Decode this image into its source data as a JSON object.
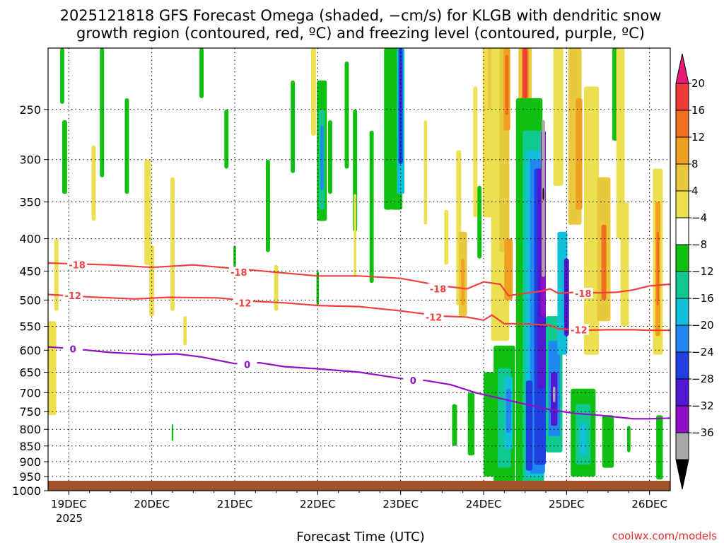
{
  "chart_data": {
    "type": "heatmap",
    "title_line1": "2025121818 GFS Forecast Omega (shaded, −cm/s) for KLGB with dendritic snow",
    "title_line2": "growth region (contoured, red, ºC) and freezing level (contoured, purple, ºC)",
    "xlabel": "Forecast Time (UTC)",
    "x_start_label": "2025",
    "credit": "coolwx.com/models",
    "y_ticks": [
      250,
      300,
      350,
      400,
      450,
      500,
      550,
      600,
      650,
      700,
      750,
      800,
      850,
      900,
      950,
      1000
    ],
    "ylim_hPa": [
      200,
      1000
    ],
    "x_ticks": [
      {
        "label": "19DEC",
        "day": 1
      },
      {
        "label": "20DEC",
        "day": 2
      },
      {
        "label": "21DEC",
        "day": 3
      },
      {
        "label": "22DEC",
        "day": 4
      },
      {
        "label": "23DEC",
        "day": 5
      },
      {
        "label": "24DEC",
        "day": 6
      },
      {
        "label": "25DEC",
        "day": 7
      },
      {
        "label": "26DEC",
        "day": 8
      }
    ],
    "xlim_days_from_1218": [
      0.75,
      8.25
    ],
    "colorbar": {
      "labels": [
        "20",
        "16",
        "12",
        "8",
        "4",
        "−4",
        "−8",
        "−12",
        "−16",
        "−20",
        "−24",
        "−28",
        "−32",
        "−36"
      ],
      "colors": [
        "#e8187a",
        "#f03a3a",
        "#f07020",
        "#f0a020",
        "#e8c83c",
        "#ece050",
        "#ffffff",
        "#10c010",
        "#10c890",
        "#10c0d8",
        "#2088f0",
        "#2040e0",
        "#5018d0",
        "#9010c8",
        "#a8a8a8",
        "#000000"
      ]
    },
    "omega_cells": [
      {
        "t": 1.95,
        "p": 370,
        "w": 0.08,
        "h": 140,
        "c": 5
      },
      {
        "t": 2.0,
        "p": 470,
        "w": 0.06,
        "h": 120,
        "c": 5
      },
      {
        "t": 0.85,
        "p": 460,
        "w": 0.05,
        "h": 120,
        "c": 5
      },
      {
        "t": 0.8,
        "p": 650,
        "w": 0.1,
        "h": 220,
        "c": 5
      },
      {
        "t": 1.3,
        "p": 330,
        "w": 0.05,
        "h": 90,
        "c": 5
      },
      {
        "t": 2.25,
        "p": 420,
        "w": 0.05,
        "h": 200,
        "c": 5
      },
      {
        "t": 0.92,
        "p": 190,
        "w": 0.05,
        "h": 110,
        "c": 7
      },
      {
        "t": 0.95,
        "p": 300,
        "w": 0.06,
        "h": 80,
        "c": 7
      },
      {
        "t": 1.4,
        "p": 260,
        "w": 0.05,
        "h": 120,
        "c": 7
      },
      {
        "t": 1.7,
        "p": 290,
        "w": 0.05,
        "h": 100,
        "c": 7
      },
      {
        "t": 2.6,
        "p": 210,
        "w": 0.05,
        "h": 60,
        "c": 7
      },
      {
        "t": 2.9,
        "p": 280,
        "w": 0.05,
        "h": 60,
        "c": 7
      },
      {
        "t": 3.4,
        "p": 360,
        "w": 0.05,
        "h": 120,
        "c": 7
      },
      {
        "t": 3.7,
        "p": 270,
        "w": 0.05,
        "h": 90,
        "c": 7
      },
      {
        "t": 3.5,
        "p": 480,
        "w": 0.05,
        "h": 80,
        "c": 5
      },
      {
        "t": 2.25,
        "p": 810,
        "w": 0.02,
        "h": 50,
        "c": 7
      },
      {
        "t": 3.95,
        "p": 230,
        "w": 0.06,
        "h": 90,
        "c": 5
      },
      {
        "t": 4.05,
        "p": 300,
        "w": 0.12,
        "h": 150,
        "c": 7
      },
      {
        "t": 4.05,
        "p": 305,
        "w": 0.07,
        "h": 110,
        "c": 8
      },
      {
        "t": 4.05,
        "p": 300,
        "w": 0.04,
        "h": 70,
        "c": 10
      },
      {
        "t": 4.15,
        "p": 300,
        "w": 0.05,
        "h": 80,
        "c": 7
      },
      {
        "t": 4.35,
        "p": 260,
        "w": 0.05,
        "h": 100,
        "c": 7
      },
      {
        "t": 4.45,
        "p": 320,
        "w": 0.05,
        "h": 140,
        "c": 7
      },
      {
        "t": 4.65,
        "p": 370,
        "w": 0.05,
        "h": 200,
        "c": 7
      },
      {
        "t": 4.85,
        "p": 280,
        "w": 0.1,
        "h": 160,
        "c": 7
      },
      {
        "t": 4.95,
        "p": 260,
        "w": 0.14,
        "h": 200,
        "c": 7
      },
      {
        "t": 5.0,
        "p": 260,
        "w": 0.09,
        "h": 160,
        "c": 9
      },
      {
        "t": 5.0,
        "p": 250,
        "w": 0.05,
        "h": 110,
        "c": 11
      },
      {
        "t": 5.0,
        "p": 230,
        "w": 0.02,
        "h": 40,
        "c": 12
      },
      {
        "t": 5.3,
        "p": 320,
        "w": 0.04,
        "h": 120,
        "c": 5
      },
      {
        "t": 5.7,
        "p": 400,
        "w": 0.06,
        "h": 220,
        "c": 5
      },
      {
        "t": 5.55,
        "p": 400,
        "w": 0.05,
        "h": 80,
        "c": 5
      },
      {
        "t": 5.9,
        "p": 300,
        "w": 0.05,
        "h": 140,
        "c": 5
      },
      {
        "t": 5.95,
        "p": 380,
        "w": 0.05,
        "h": 100,
        "c": 7
      },
      {
        "t": 6.05,
        "p": 290,
        "w": 0.05,
        "h": 160,
        "c": 7
      },
      {
        "t": 5.75,
        "p": 460,
        "w": 0.1,
        "h": 140,
        "c": 4
      },
      {
        "t": 5.75,
        "p": 470,
        "w": 0.04,
        "h": 80,
        "c": 3
      },
      {
        "t": 5.65,
        "p": 790,
        "w": 0.06,
        "h": 120,
        "c": 7
      },
      {
        "t": 5.85,
        "p": 790,
        "w": 0.08,
        "h": 180,
        "c": 7
      },
      {
        "t": 6.05,
        "p": 260,
        "w": 0.12,
        "h": 220,
        "c": 5
      },
      {
        "t": 6.1,
        "p": 200,
        "w": 0.1,
        "h": 100,
        "c": 4
      },
      {
        "t": 6.2,
        "p": 380,
        "w": 0.22,
        "h": 400,
        "c": 5
      },
      {
        "t": 6.25,
        "p": 300,
        "w": 0.12,
        "h": 240,
        "c": 4
      },
      {
        "t": 6.28,
        "p": 220,
        "w": 0.08,
        "h": 100,
        "c": 3
      },
      {
        "t": 6.28,
        "p": 230,
        "w": 0.04,
        "h": 50,
        "c": 2
      },
      {
        "t": 6.3,
        "p": 450,
        "w": 0.1,
        "h": 100,
        "c": 3
      },
      {
        "t": 6.1,
        "p": 800,
        "w": 0.2,
        "h": 300,
        "c": 7
      },
      {
        "t": 6.25,
        "p": 790,
        "w": 0.26,
        "h": 400,
        "c": 7
      },
      {
        "t": 6.25,
        "p": 780,
        "w": 0.16,
        "h": 280,
        "c": 8
      },
      {
        "t": 6.3,
        "p": 760,
        "w": 0.1,
        "h": 200,
        "c": 9
      },
      {
        "t": 6.3,
        "p": 750,
        "w": 0.06,
        "h": 120,
        "c": 10
      },
      {
        "t": 6.5,
        "p": 240,
        "w": 0.16,
        "h": 140,
        "c": 4
      },
      {
        "t": 6.5,
        "p": 230,
        "w": 0.08,
        "h": 80,
        "c": 2
      },
      {
        "t": 6.5,
        "p": 220,
        "w": 0.04,
        "h": 40,
        "c": 1
      },
      {
        "t": 6.55,
        "p": 620,
        "w": 0.32,
        "h": 760,
        "c": 7
      },
      {
        "t": 6.6,
        "p": 620,
        "w": 0.26,
        "h": 700,
        "c": 8
      },
      {
        "t": 6.62,
        "p": 620,
        "w": 0.22,
        "h": 660,
        "c": 9
      },
      {
        "t": 6.65,
        "p": 620,
        "w": 0.18,
        "h": 640,
        "c": 10
      },
      {
        "t": 6.68,
        "p": 610,
        "w": 0.14,
        "h": 600,
        "c": 11
      },
      {
        "t": 6.7,
        "p": 500,
        "w": 0.1,
        "h": 380,
        "c": 12
      },
      {
        "t": 6.55,
        "p": 800,
        "w": 0.08,
        "h": 260,
        "c": 11
      },
      {
        "t": 6.72,
        "p": 400,
        "w": 0.06,
        "h": 260,
        "c": 13
      },
      {
        "t": 6.72,
        "p": 360,
        "w": 0.04,
        "h": 200,
        "c": 14
      },
      {
        "t": 6.72,
        "p": 340,
        "w": 0.016,
        "h": 15,
        "c": 15
      },
      {
        "t": 6.85,
        "p": 700,
        "w": 0.2,
        "h": 340,
        "c": 8
      },
      {
        "t": 6.85,
        "p": 700,
        "w": 0.14,
        "h": 240,
        "c": 10
      },
      {
        "t": 6.85,
        "p": 720,
        "w": 0.08,
        "h": 140,
        "c": 12
      },
      {
        "t": 6.85,
        "p": 705,
        "w": 0.03,
        "h": 40,
        "c": 14
      },
      {
        "t": 6.95,
        "p": 500,
        "w": 0.12,
        "h": 220,
        "c": 9
      },
      {
        "t": 7.0,
        "p": 500,
        "w": 0.06,
        "h": 140,
        "c": 12
      },
      {
        "t": 6.9,
        "p": 250,
        "w": 0.12,
        "h": 160,
        "c": 5
      },
      {
        "t": 7.1,
        "p": 280,
        "w": 0.16,
        "h": 200,
        "c": 4
      },
      {
        "t": 7.15,
        "p": 300,
        "w": 0.08,
        "h": 120,
        "c": 3
      },
      {
        "t": 7.2,
        "p": 820,
        "w": 0.3,
        "h": 260,
        "c": 7
      },
      {
        "t": 7.2,
        "p": 820,
        "w": 0.18,
        "h": 180,
        "c": 8
      },
      {
        "t": 7.2,
        "p": 830,
        "w": 0.08,
        "h": 100,
        "c": 9
      },
      {
        "t": 7.3,
        "p": 420,
        "w": 0.18,
        "h": 380,
        "c": 5
      },
      {
        "t": 7.45,
        "p": 430,
        "w": 0.16,
        "h": 220,
        "c": 4
      },
      {
        "t": 7.45,
        "p": 440,
        "w": 0.06,
        "h": 120,
        "c": 2
      },
      {
        "t": 7.6,
        "p": 230,
        "w": 0.1,
        "h": 100,
        "c": 7
      },
      {
        "t": 7.65,
        "p": 300,
        "w": 0.1,
        "h": 200,
        "c": 5
      },
      {
        "t": 7.7,
        "p": 450,
        "w": 0.1,
        "h": 200,
        "c": 5
      },
      {
        "t": 7.5,
        "p": 840,
        "w": 0.14,
        "h": 160,
        "c": 7
      },
      {
        "t": 7.75,
        "p": 830,
        "w": 0.04,
        "h": 80,
        "c": 7
      },
      {
        "t": 8.1,
        "p": 460,
        "w": 0.12,
        "h": 300,
        "c": 5
      },
      {
        "t": 8.1,
        "p": 460,
        "w": 0.06,
        "h": 220,
        "c": 3
      },
      {
        "t": 8.1,
        "p": 450,
        "w": 0.03,
        "h": 120,
        "c": 2
      },
      {
        "t": 8.12,
        "p": 860,
        "w": 0.08,
        "h": 200,
        "c": 7
      },
      {
        "t": 3.0,
        "p": 430,
        "w": 0.03,
        "h": 40,
        "c": 7
      },
      {
        "t": 2.4,
        "p": 560,
        "w": 0.04,
        "h": 60,
        "c": 5
      },
      {
        "t": 4.45,
        "p": 400,
        "w": 0.03,
        "h": 120,
        "c": 5
      },
      {
        "t": 4.0,
        "p": 480,
        "w": 0.03,
        "h": 60,
        "c": 7
      }
    ],
    "dgz_lines": [
      {
        "label": "-18",
        "points": [
          [
            0.75,
            437
          ],
          [
            1.5,
            440
          ],
          [
            2.0,
            444
          ],
          [
            2.5,
            440
          ],
          [
            3.0,
            446
          ],
          [
            3.5,
            452
          ],
          [
            4.0,
            458
          ],
          [
            4.5,
            458
          ],
          [
            5.0,
            462
          ],
          [
            5.5,
            475
          ],
          [
            5.8,
            480
          ],
          [
            6.0,
            468
          ],
          [
            6.2,
            472
          ],
          [
            6.3,
            492
          ],
          [
            6.5,
            488
          ],
          [
            6.7,
            484
          ],
          [
            6.8,
            480
          ],
          [
            6.9,
            488
          ],
          [
            7.1,
            486
          ],
          [
            7.4,
            487
          ],
          [
            7.6,
            486
          ],
          [
            7.8,
            482
          ],
          [
            8.0,
            475
          ],
          [
            8.25,
            472
          ]
        ],
        "labels": [
          [
            1.1,
            440
          ],
          [
            3.05,
            452
          ],
          [
            5.45,
            480
          ],
          [
            7.2,
            488
          ]
        ]
      },
      {
        "label": "-12",
        "points": [
          [
            0.75,
            490
          ],
          [
            1.2,
            494
          ],
          [
            1.8,
            498
          ],
          [
            2.2,
            495
          ],
          [
            2.8,
            496
          ],
          [
            3.2,
            502
          ],
          [
            3.6,
            505
          ],
          [
            4.0,
            510
          ],
          [
            4.5,
            512
          ],
          [
            5.0,
            520
          ],
          [
            5.5,
            530
          ],
          [
            5.8,
            532
          ],
          [
            6.0,
            538
          ],
          [
            6.1,
            528
          ],
          [
            6.25,
            545
          ],
          [
            6.5,
            545
          ],
          [
            6.8,
            548
          ],
          [
            6.9,
            555
          ],
          [
            7.2,
            558
          ],
          [
            7.5,
            557
          ],
          [
            7.8,
            557
          ],
          [
            8.0,
            558
          ],
          [
            8.25,
            558
          ]
        ],
        "labels": [
          [
            1.05,
            492
          ],
          [
            3.1,
            505
          ],
          [
            5.4,
            532
          ],
          [
            7.15,
            557
          ]
        ]
      }
    ],
    "freezing_line": {
      "label": "0",
      "points": [
        [
          0.75,
          593
        ],
        [
          1.0,
          596
        ],
        [
          1.5,
          605
        ],
        [
          2.0,
          610
        ],
        [
          2.3,
          608
        ],
        [
          2.6,
          615
        ],
        [
          3.0,
          630
        ],
        [
          3.3,
          628
        ],
        [
          3.6,
          637
        ],
        [
          4.0,
          642
        ],
        [
          4.5,
          650
        ],
        [
          5.0,
          665
        ],
        [
          5.3,
          670
        ],
        [
          5.6,
          680
        ],
        [
          5.9,
          700
        ],
        [
          6.2,
          715
        ],
        [
          6.5,
          730
        ],
        [
          6.8,
          745
        ],
        [
          7.1,
          755
        ],
        [
          7.4,
          760
        ],
        [
          7.6,
          765
        ],
        [
          7.8,
          770
        ],
        [
          8.0,
          770
        ],
        [
          8.25,
          768
        ]
      ],
      "labels": [
        [
          1.05,
          597
        ],
        [
          3.15,
          632
        ],
        [
          5.15,
          670
        ]
      ]
    }
  }
}
